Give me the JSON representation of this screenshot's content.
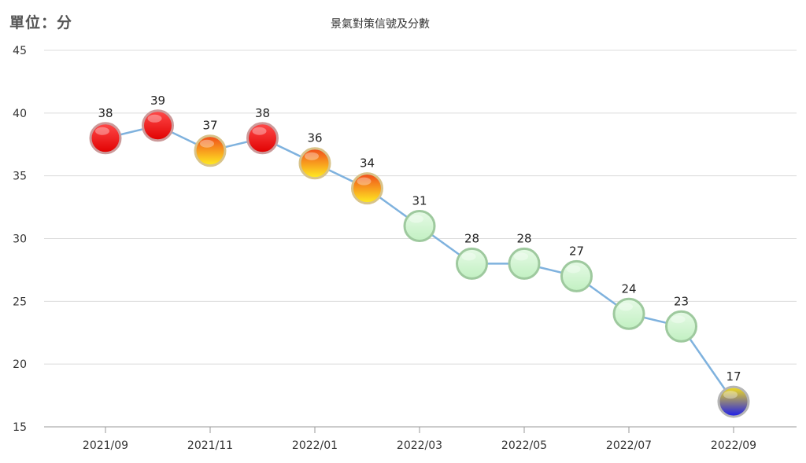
{
  "unit_label": "單位：分",
  "chart_data": {
    "type": "line",
    "title": "景氣對策信號及分數",
    "ylabel": "單位：分",
    "xlabel": "",
    "ylim": [
      15,
      45
    ],
    "yticks": [
      15,
      20,
      25,
      30,
      35,
      40,
      45
    ],
    "grid": true,
    "x": [
      "2021/09",
      "2021/10",
      "2021/11",
      "2021/12",
      "2022/01",
      "2022/02",
      "2022/03",
      "2022/04",
      "2022/05",
      "2022/06",
      "2022/07",
      "2022/08",
      "2022/09"
    ],
    "xtick_labels": [
      "2021/09",
      "2021/11",
      "2022/01",
      "2022/03",
      "2022/05",
      "2022/07",
      "2022/09"
    ],
    "series": [
      {
        "values": [
          38,
          39,
          37,
          38,
          36,
          34,
          31,
          28,
          28,
          27,
          24,
          23,
          17
        ],
        "line_color": "#7fb2de",
        "signals": [
          "red",
          "red",
          "yellow-red",
          "red",
          "yellow-red",
          "yellow-red",
          "green",
          "green",
          "green",
          "green",
          "green",
          "green",
          "yellow-blue"
        ]
      }
    ],
    "signal_colors": {
      "red": [
        "#ff4a4a",
        "#e00000"
      ],
      "yellow-red": [
        "#f04a1a",
        "#ffee22"
      ],
      "green": [
        "#e6fae6",
        "#c2f0c2"
      ],
      "yellow-blue": [
        "#f5e019",
        "#1a1aee"
      ]
    }
  }
}
